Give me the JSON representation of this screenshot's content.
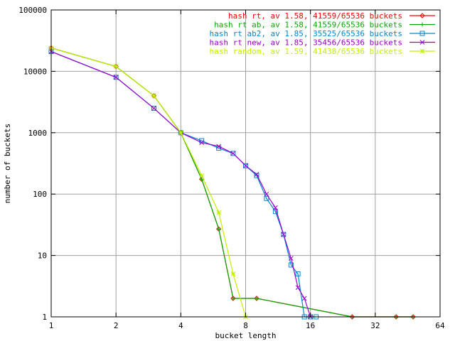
{
  "chart_data": {
    "type": "line",
    "title": "",
    "xlabel": "bucket length",
    "ylabel": "number of buckets",
    "x_scale": "log2",
    "y_scale": "log10",
    "xlim": [
      1,
      64
    ],
    "ylim": [
      1,
      100000
    ],
    "grid": true,
    "legend_position": "top-right",
    "x_ticks": [
      {
        "value": 1,
        "label": "1"
      },
      {
        "value": 2,
        "label": "2"
      },
      {
        "value": 4,
        "label": "4"
      },
      {
        "value": 8,
        "label": "8"
      },
      {
        "value": 16,
        "label": "16"
      },
      {
        "value": 32,
        "label": "32"
      },
      {
        "value": 64,
        "label": "64"
      }
    ],
    "y_ticks": [
      {
        "value": 1,
        "label": "1"
      },
      {
        "value": 10,
        "label": "10"
      },
      {
        "value": 100,
        "label": "100"
      },
      {
        "value": 1000,
        "label": "1000"
      },
      {
        "value": 10000,
        "label": "10000"
      },
      {
        "value": 100000,
        "label": "100000"
      }
    ],
    "series": [
      {
        "name": "hash rt, av 1.58, 41559/65536 buckets",
        "color": "#ff0000",
        "marker": "diamond",
        "x": [
          1,
          2,
          3,
          4,
          5,
          6,
          7,
          9,
          25,
          40,
          48
        ],
        "y": [
          24000,
          12000,
          4000,
          1000,
          175,
          27,
          2,
          2,
          1,
          1,
          1
        ]
      },
      {
        "name": "hash rt ab, av 1.58, 41559/65536 buckets",
        "color": "#00aa00",
        "marker": "plus",
        "x": [
          1,
          2,
          3,
          4,
          5,
          6,
          7,
          9,
          25,
          40,
          48
        ],
        "y": [
          24000,
          12000,
          4000,
          1000,
          175,
          27,
          2,
          2,
          1,
          1,
          1
        ]
      },
      {
        "name": "hash rt ab2, av 1.85, 35525/65536 buckets",
        "color": "#0088cc",
        "marker": "square",
        "x": [
          1,
          2,
          3,
          4,
          5,
          6,
          7,
          8,
          9,
          10,
          11,
          12,
          13,
          14,
          15,
          16,
          17
        ],
        "y": [
          21000,
          8000,
          2500,
          1000,
          740,
          560,
          460,
          290,
          200,
          85,
          52,
          22,
          7,
          5,
          1,
          1,
          1
        ]
      },
      {
        "name": "hash rt new, av 1.85, 35456/65536 buckets",
        "color": "#9900cc",
        "marker": "x",
        "x": [
          1,
          2,
          3,
          4,
          5,
          6,
          7,
          8,
          9,
          10,
          11,
          12,
          13,
          14,
          15,
          16
        ],
        "y": [
          21000,
          8000,
          2500,
          1000,
          690,
          600,
          460,
          290,
          210,
          100,
          60,
          22,
          9,
          3,
          2,
          1
        ]
      },
      {
        "name": "hash random, av 1.59, 41438/65536 buckets",
        "color": "#c0f000",
        "marker": "star",
        "x": [
          1,
          2,
          3,
          4,
          5,
          6,
          7,
          8
        ],
        "y": [
          24000,
          12000,
          4000,
          1000,
          200,
          50,
          5,
          1
        ]
      }
    ]
  }
}
